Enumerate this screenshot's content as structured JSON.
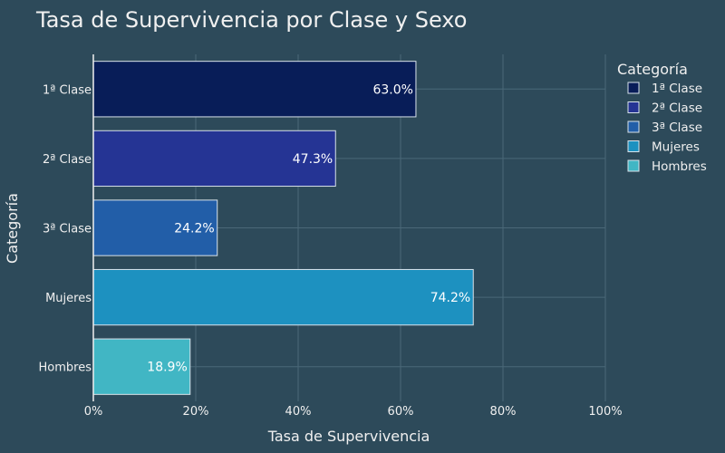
{
  "chart_data": {
    "type": "bar",
    "orientation": "horizontal",
    "title": "Tasa de Supervivencia por Clase y Sexo",
    "xlabel": "Tasa de Supervivencia",
    "ylabel": "Categoría",
    "categories": [
      "1ª Clase",
      "2ª Clase",
      "3ª Clase",
      "Mujeres",
      "Hombres"
    ],
    "values": [
      0.63,
      0.473,
      0.242,
      0.742,
      0.189
    ],
    "data_labels": [
      "63.0%",
      "47.3%",
      "24.2%",
      "74.2%",
      "18.9%"
    ],
    "colors": [
      "#081d58",
      "#253494",
      "#225ea8",
      "#1d91c0",
      "#41b6c4"
    ],
    "xlim": [
      0,
      1
    ],
    "xticks": [
      0,
      0.2,
      0.4,
      0.6,
      0.8,
      1.0
    ],
    "xtick_labels": [
      "0%",
      "20%",
      "40%",
      "60%",
      "80%",
      "100%"
    ],
    "grid": true,
    "legend": {
      "title": "Categoría",
      "placement": "right",
      "entries": [
        "1ª Clase",
        "2ª Clase",
        "3ª Clase",
        "Mujeres",
        "Hombres"
      ]
    },
    "background": "#2d4a5a",
    "grid_color": "#4a6878",
    "bar_border": "#d8e2ea"
  }
}
